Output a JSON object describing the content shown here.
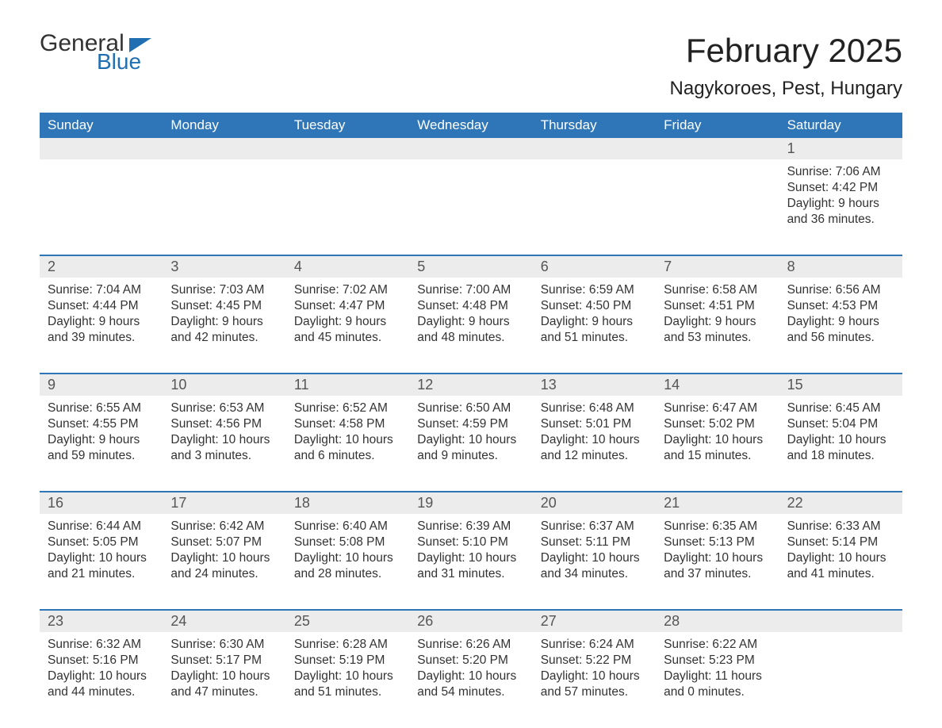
{
  "logo": {
    "word1": "General",
    "word2": "Blue",
    "word1_color": "#333333",
    "word2_color": "#1f6fb2",
    "triangle_color": "#1f6fb2"
  },
  "title": "February 2025",
  "location": "Nagykoroes, Pest, Hungary",
  "colors": {
    "header_bg": "#2f76b8",
    "header_text": "#ffffff",
    "daynum_bg": "#ececec",
    "daynum_text": "#555555",
    "body_text": "#333333",
    "week_border": "#2f76b8",
    "page_bg": "#ffffff"
  },
  "typography": {
    "title_fontsize": 42,
    "location_fontsize": 24,
    "weekday_fontsize": 17,
    "daynum_fontsize": 18,
    "cell_fontsize": 15.5,
    "font_family": "Arial"
  },
  "layout": {
    "columns": 7,
    "rows": 5,
    "first_day_column_index": 6
  },
  "weekdays": [
    "Sunday",
    "Monday",
    "Tuesday",
    "Wednesday",
    "Thursday",
    "Friday",
    "Saturday"
  ],
  "labels": {
    "sunrise": "Sunrise:",
    "sunset": "Sunset:",
    "daylight": "Daylight:"
  },
  "days": [
    {
      "n": 1,
      "sunrise": "7:06 AM",
      "sunset": "4:42 PM",
      "day_h": 9,
      "day_m": 36
    },
    {
      "n": 2,
      "sunrise": "7:04 AM",
      "sunset": "4:44 PM",
      "day_h": 9,
      "day_m": 39
    },
    {
      "n": 3,
      "sunrise": "7:03 AM",
      "sunset": "4:45 PM",
      "day_h": 9,
      "day_m": 42
    },
    {
      "n": 4,
      "sunrise": "7:02 AM",
      "sunset": "4:47 PM",
      "day_h": 9,
      "day_m": 45
    },
    {
      "n": 5,
      "sunrise": "7:00 AM",
      "sunset": "4:48 PM",
      "day_h": 9,
      "day_m": 48
    },
    {
      "n": 6,
      "sunrise": "6:59 AM",
      "sunset": "4:50 PM",
      "day_h": 9,
      "day_m": 51
    },
    {
      "n": 7,
      "sunrise": "6:58 AM",
      "sunset": "4:51 PM",
      "day_h": 9,
      "day_m": 53
    },
    {
      "n": 8,
      "sunrise": "6:56 AM",
      "sunset": "4:53 PM",
      "day_h": 9,
      "day_m": 56
    },
    {
      "n": 9,
      "sunrise": "6:55 AM",
      "sunset": "4:55 PM",
      "day_h": 9,
      "day_m": 59
    },
    {
      "n": 10,
      "sunrise": "6:53 AM",
      "sunset": "4:56 PM",
      "day_h": 10,
      "day_m": 3
    },
    {
      "n": 11,
      "sunrise": "6:52 AM",
      "sunset": "4:58 PM",
      "day_h": 10,
      "day_m": 6
    },
    {
      "n": 12,
      "sunrise": "6:50 AM",
      "sunset": "4:59 PM",
      "day_h": 10,
      "day_m": 9
    },
    {
      "n": 13,
      "sunrise": "6:48 AM",
      "sunset": "5:01 PM",
      "day_h": 10,
      "day_m": 12
    },
    {
      "n": 14,
      "sunrise": "6:47 AM",
      "sunset": "5:02 PM",
      "day_h": 10,
      "day_m": 15
    },
    {
      "n": 15,
      "sunrise": "6:45 AM",
      "sunset": "5:04 PM",
      "day_h": 10,
      "day_m": 18
    },
    {
      "n": 16,
      "sunrise": "6:44 AM",
      "sunset": "5:05 PM",
      "day_h": 10,
      "day_m": 21
    },
    {
      "n": 17,
      "sunrise": "6:42 AM",
      "sunset": "5:07 PM",
      "day_h": 10,
      "day_m": 24
    },
    {
      "n": 18,
      "sunrise": "6:40 AM",
      "sunset": "5:08 PM",
      "day_h": 10,
      "day_m": 28
    },
    {
      "n": 19,
      "sunrise": "6:39 AM",
      "sunset": "5:10 PM",
      "day_h": 10,
      "day_m": 31
    },
    {
      "n": 20,
      "sunrise": "6:37 AM",
      "sunset": "5:11 PM",
      "day_h": 10,
      "day_m": 34
    },
    {
      "n": 21,
      "sunrise": "6:35 AM",
      "sunset": "5:13 PM",
      "day_h": 10,
      "day_m": 37
    },
    {
      "n": 22,
      "sunrise": "6:33 AM",
      "sunset": "5:14 PM",
      "day_h": 10,
      "day_m": 41
    },
    {
      "n": 23,
      "sunrise": "6:32 AM",
      "sunset": "5:16 PM",
      "day_h": 10,
      "day_m": 44
    },
    {
      "n": 24,
      "sunrise": "6:30 AM",
      "sunset": "5:17 PM",
      "day_h": 10,
      "day_m": 47
    },
    {
      "n": 25,
      "sunrise": "6:28 AM",
      "sunset": "5:19 PM",
      "day_h": 10,
      "day_m": 51
    },
    {
      "n": 26,
      "sunrise": "6:26 AM",
      "sunset": "5:20 PM",
      "day_h": 10,
      "day_m": 54
    },
    {
      "n": 27,
      "sunrise": "6:24 AM",
      "sunset": "5:22 PM",
      "day_h": 10,
      "day_m": 57
    },
    {
      "n": 28,
      "sunrise": "6:22 AM",
      "sunset": "5:23 PM",
      "day_h": 11,
      "day_m": 0
    }
  ]
}
